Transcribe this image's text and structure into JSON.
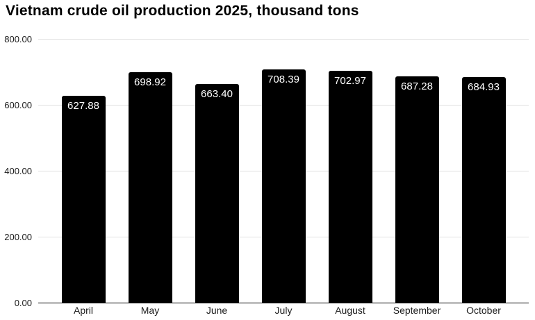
{
  "chart_data": {
    "type": "bar",
    "title": "Vietnam crude oil production 2025, thousand tons",
    "categories": [
      "April",
      "May",
      "June",
      "July",
      "August",
      "September",
      "October"
    ],
    "values": [
      627.88,
      698.92,
      663.4,
      708.39,
      702.97,
      687.28,
      684.93
    ],
    "value_labels": [
      "627.88",
      "698.92",
      "663.40",
      "708.39",
      "702.97",
      "687.28",
      "684.93"
    ],
    "xlabel": "",
    "ylabel": "",
    "ylim": [
      0,
      800
    ],
    "y_ticks": [
      {
        "value": 0,
        "label": "0.00"
      },
      {
        "value": 200,
        "label": "200.00"
      },
      {
        "value": 400,
        "label": "400.00"
      },
      {
        "value": 600,
        "label": "600.00"
      },
      {
        "value": 800,
        "label": "800.00"
      }
    ],
    "grid": true,
    "legend_position": "none",
    "colors": {
      "background": "#ffffff",
      "bar": "#000000",
      "bar_value_label": "#ffffff",
      "gridline": "#e0e0e0",
      "axis_line": "#000000",
      "tick_label": "#1a1a1a",
      "title": "#000000"
    }
  }
}
